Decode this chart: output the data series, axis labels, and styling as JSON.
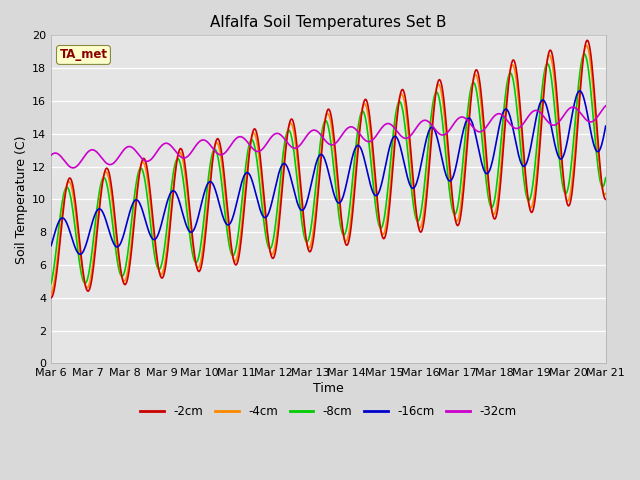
{
  "title": "Alfalfa Soil Temperatures Set B",
  "xlabel": "Time",
  "ylabel": "Soil Temperature (C)",
  "ylim": [
    0,
    20
  ],
  "background_color": "#d9d9d9",
  "plot_bg_color": "#e5e5e5",
  "annotation_text": "TA_met",
  "annotation_color": "#8b0000",
  "annotation_bg": "#ffffcc",
  "xtick_labels": [
    "Mar 6",
    "Mar 7",
    "Mar 8",
    "Mar 9",
    "Mar 10",
    "Mar 11",
    "Mar 12",
    "Mar 13",
    "Mar 14",
    "Mar 15",
    "Mar 16",
    "Mar 17",
    "Mar 18",
    "Mar 19",
    "Mar 20",
    "Mar 21"
  ],
  "legend_labels": [
    "-2cm",
    "-4cm",
    "-8cm",
    "-16cm",
    "-32cm"
  ],
  "legend_colors": [
    "#cc0000",
    "#ff8800",
    "#00cc00",
    "#0000cc",
    "#cc00cc"
  ],
  "line_colors": [
    "#cc0000",
    "#ff8800",
    "#00cc00",
    "#0000cc",
    "#cc00cc"
  ]
}
